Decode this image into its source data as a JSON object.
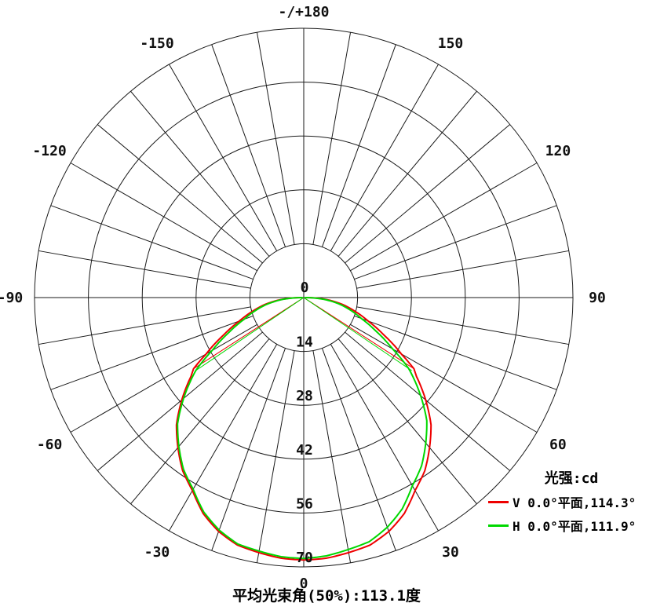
{
  "chart_data": {
    "type": "line",
    "polar": true,
    "legend_title": "光强:cd",
    "footer": "平均光束角(50%):113.1度",
    "grid": {
      "rings": 5,
      "spoke_step_deg": 10,
      "angle_label_step_deg": 30
    },
    "radial": {
      "values": [
        0,
        14,
        28,
        42,
        56,
        70
      ],
      "max": 70,
      "unit": "cd"
    },
    "angle_labels": [
      {
        "text": "0",
        "deg": 0
      },
      {
        "text": "30",
        "deg": 30
      },
      {
        "text": "60",
        "deg": 60
      },
      {
        "text": "90",
        "deg": 90
      },
      {
        "text": "120",
        "deg": 120
      },
      {
        "text": "150",
        "deg": 150
      },
      {
        "text": "-/+180",
        "deg": 180
      },
      {
        "text": "-150",
        "deg": -150
      },
      {
        "text": "-120",
        "deg": -120
      },
      {
        "text": "-90",
        "deg": -90
      },
      {
        "text": "-60",
        "deg": -60
      },
      {
        "text": "-30",
        "deg": -30
      }
    ],
    "series": [
      {
        "name": "V",
        "label": "V 0.0°平面,114.3°",
        "color": "#ee0000",
        "beam_angle_deg": 114.3,
        "half_angle_deg": 57.15,
        "half_intensity": 34.1,
        "right_asym": 0.0,
        "points": [
          [
            0,
            68.2
          ],
          [
            5,
            68.0
          ],
          [
            10,
            67.3
          ],
          [
            15,
            66.6
          ],
          [
            20,
            64.7
          ],
          [
            25,
            61.9
          ],
          [
            30,
            57.9
          ],
          [
            35,
            54.9
          ],
          [
            40,
            50.9
          ],
          [
            45,
            46.8
          ],
          [
            50,
            41.4
          ],
          [
            55,
            35.8
          ],
          [
            57.15,
            34.1
          ],
          [
            60,
            29.3
          ],
          [
            65,
            23.0
          ],
          [
            70,
            17.8
          ],
          [
            75,
            13.8
          ],
          [
            80,
            10.2
          ],
          [
            85,
            6.0
          ],
          [
            88,
            3.0
          ],
          [
            90,
            0.5
          ]
        ]
      },
      {
        "name": "H",
        "label": "H 0.0°平面,111.9°",
        "color": "#00d800",
        "beam_angle_deg": 111.9,
        "half_angle_deg": 55.95,
        "half_intensity": 33.9,
        "right_asym": -0.035,
        "points": [
          [
            0,
            67.8
          ],
          [
            5,
            67.6
          ],
          [
            10,
            66.9
          ],
          [
            15,
            66.3
          ],
          [
            20,
            64.3
          ],
          [
            25,
            61.5
          ],
          [
            30,
            57.5
          ],
          [
            35,
            54.5
          ],
          [
            40,
            50.5
          ],
          [
            45,
            46.4
          ],
          [
            50,
            40.8
          ],
          [
            55,
            35.0
          ],
          [
            55.95,
            33.9
          ],
          [
            60,
            27.5
          ],
          [
            65,
            21.5
          ],
          [
            70,
            16.5
          ],
          [
            75,
            13.0
          ],
          [
            80,
            9.5
          ],
          [
            85,
            5.5
          ],
          [
            88,
            2.5
          ],
          [
            90,
            0.3
          ]
        ]
      }
    ]
  }
}
